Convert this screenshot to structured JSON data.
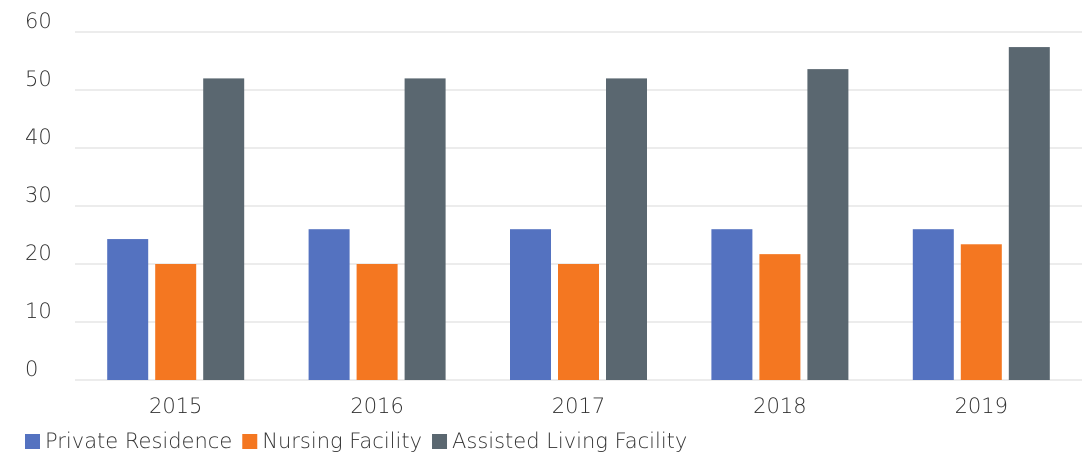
{
  "chart_data": {
    "type": "bar",
    "categories": [
      "2015",
      "2016",
      "2017",
      "2018",
      "2019"
    ],
    "series": [
      {
        "name": "Private Residence",
        "color": "#5472c0",
        "values": [
          24.3,
          26,
          26,
          26,
          26
        ]
      },
      {
        "name": "Nursing Facility",
        "color": "#f47721",
        "values": [
          20,
          20,
          20,
          21.7,
          23.4
        ]
      },
      {
        "name": "Assisted Living Facility",
        "color": "#5a6770",
        "values": [
          52,
          52,
          52,
          53.6,
          57.4
        ]
      }
    ],
    "ylim": [
      0,
      60
    ],
    "yticks": [
      0,
      10,
      20,
      30,
      40,
      50,
      60
    ],
    "grid": true,
    "legend": "bottom-left"
  }
}
